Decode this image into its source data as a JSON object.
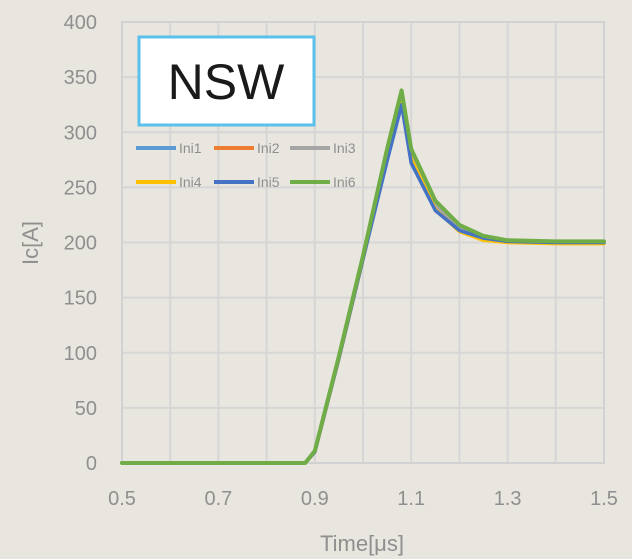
{
  "chart_data": {
    "type": "line",
    "title": "",
    "xlabel": "Time[μs]",
    "ylabel": "Ic[A]",
    "xlim": [
      0.5,
      1.5
    ],
    "ylim": [
      0,
      400
    ],
    "xticks": [
      0.5,
      0.6,
      0.7,
      0.8,
      0.9,
      1.0,
      1.1,
      1.2,
      1.3,
      1.4,
      1.5
    ],
    "xtick_labels": [
      "0.5",
      "",
      "0.7",
      "",
      "0.9",
      "",
      "1.1",
      "",
      "1.3",
      "",
      "1.5"
    ],
    "yticks": [
      0,
      50,
      100,
      150,
      200,
      250,
      300,
      350,
      400
    ],
    "ytick_labels": [
      "0",
      "50",
      "100",
      "150",
      "200",
      "250",
      "300",
      "350",
      "400"
    ],
    "grid": true,
    "legend_position": "top-left",
    "annotation": "NSW",
    "series": [
      {
        "name": "Ini1",
        "color": "#5b9bd5",
        "x": [
          0.5,
          0.88,
          0.9,
          0.95,
          1.0,
          1.05,
          1.08,
          1.1,
          1.15,
          1.2,
          1.25,
          1.3,
          1.4,
          1.5
        ],
        "y": [
          0,
          0,
          10,
          95,
          185,
          275,
          325,
          275,
          232,
          213,
          205,
          202,
          200,
          200
        ]
      },
      {
        "name": "Ini2",
        "color": "#ed7d31",
        "x": [
          0.5,
          0.88,
          0.9,
          0.95,
          1.0,
          1.05,
          1.08,
          1.1,
          1.15,
          1.2,
          1.25,
          1.3,
          1.4,
          1.5
        ],
        "y": [
          0,
          0,
          10,
          95,
          185,
          278,
          330,
          278,
          232,
          212,
          204,
          201,
          200,
          200
        ]
      },
      {
        "name": "Ini3",
        "color": "#a5a5a5",
        "x": [
          0.5,
          0.88,
          0.9,
          0.95,
          1.0,
          1.05,
          1.08,
          1.1,
          1.15,
          1.2,
          1.25,
          1.3,
          1.4,
          1.5
        ],
        "y": [
          0,
          0,
          10,
          96,
          186,
          280,
          334,
          280,
          233,
          213,
          204,
          201,
          200,
          200
        ]
      },
      {
        "name": "Ini4",
        "color": "#ffc000",
        "x": [
          0.5,
          0.88,
          0.9,
          0.95,
          1.0,
          1.05,
          1.08,
          1.1,
          1.15,
          1.2,
          1.25,
          1.3,
          1.4,
          1.5
        ],
        "y": [
          0,
          0,
          10,
          95,
          185,
          276,
          328,
          276,
          230,
          210,
          202,
          200,
          199,
          199
        ]
      },
      {
        "name": "Ini5",
        "color": "#4472c4",
        "x": [
          0.5,
          0.88,
          0.9,
          0.95,
          1.0,
          1.05,
          1.08,
          1.1,
          1.15,
          1.2,
          1.25,
          1.3,
          1.4,
          1.5
        ],
        "y": [
          0,
          0,
          10,
          95,
          185,
          274,
          325,
          272,
          229,
          211,
          204,
          201,
          200,
          200
        ]
      },
      {
        "name": "Ini6",
        "color": "#70ad47",
        "x": [
          0.5,
          0.88,
          0.9,
          0.95,
          1.0,
          1.05,
          1.08,
          1.1,
          1.15,
          1.2,
          1.25,
          1.3,
          1.4,
          1.5
        ],
        "y": [
          0,
          0,
          11,
          97,
          188,
          285,
          338,
          285,
          238,
          216,
          206,
          202,
          201,
          201
        ]
      }
    ]
  }
}
